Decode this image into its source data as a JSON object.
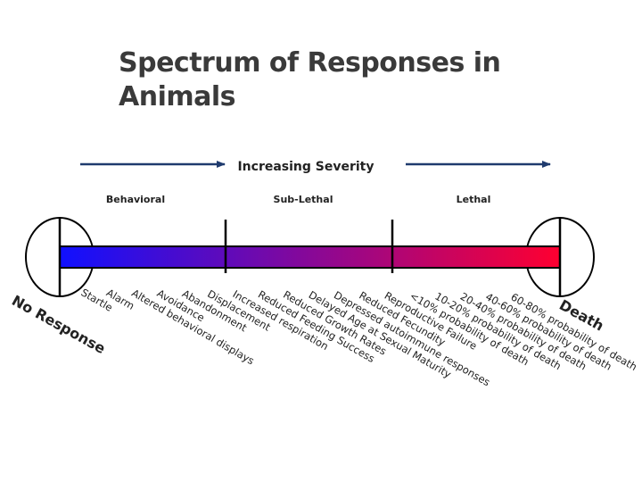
{
  "title_lines": [
    "Spectrum of Responses in",
    "Animals"
  ],
  "severity_label": "Increasing Severity",
  "categories": [
    "Behavioral",
    "Sub-Lethal",
    "Lethal"
  ],
  "end_labels": {
    "left": "No Response",
    "right": "Death"
  },
  "responses": [
    "Startle",
    "Alarm",
    "Altered behavioral displays",
    "Avoidance",
    "Abandonment",
    "Displacement",
    "Increased respiration",
    "Reduced Feeding Success",
    "Reduced Growth Rates",
    "Delayed Age at Sexual Maturity",
    "Depressed autoimmune responses",
    "Reduced Fecundity",
    "Reproductive Failure",
    "<10% probability of death",
    "10-20% probability of death",
    "20-40% probability of death",
    "40-60% probability of death",
    "60-80% probability of death"
  ],
  "colors": {
    "gradient_start": "#1010ff",
    "gradient_end": "#ff0030",
    "arrow": "#1f3b6e",
    "text": "#222222"
  }
}
